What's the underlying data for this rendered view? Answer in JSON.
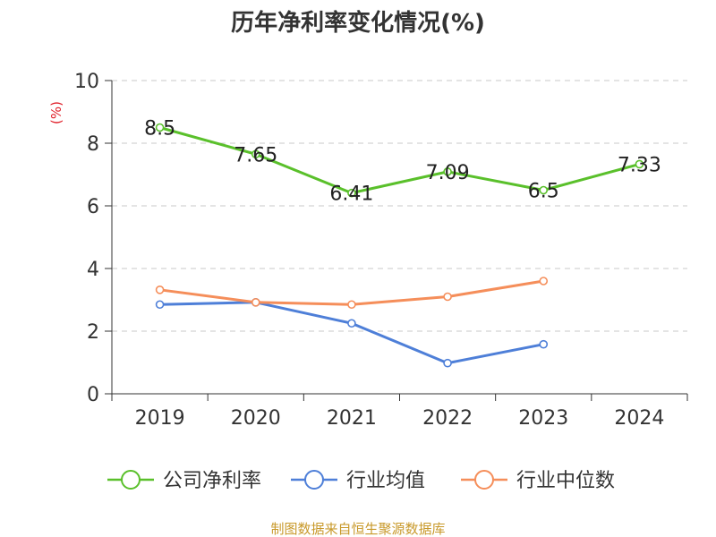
{
  "chart_data": {
    "type": "line",
    "title": "历年净利率变化情况(%)",
    "ylabel": "(%)",
    "xlabel": "",
    "categories": [
      "2019",
      "2020",
      "2021",
      "2022",
      "2023",
      "2024"
    ],
    "ylim": [
      0,
      10
    ],
    "yticks": [
      0,
      2,
      4,
      6,
      8,
      10
    ],
    "grid": true,
    "legend_position": "bottom",
    "series": [
      {
        "name": "公司净利率",
        "color": "#5ac02b",
        "values": [
          8.5,
          7.65,
          6.41,
          7.09,
          6.5,
          7.33
        ],
        "labels": [
          "8.5",
          "7.65",
          "6.41",
          "7.09",
          "6.5",
          "7.33"
        ]
      },
      {
        "name": "行业均值",
        "color": "#4e7fd8",
        "values": [
          2.85,
          2.92,
          2.25,
          0.98,
          1.58,
          null
        ]
      },
      {
        "name": "行业中位数",
        "color": "#f58e5a",
        "values": [
          3.32,
          2.92,
          2.85,
          3.1,
          3.6,
          null
        ]
      }
    ]
  },
  "source": "制图数据来自恒生聚源数据库"
}
